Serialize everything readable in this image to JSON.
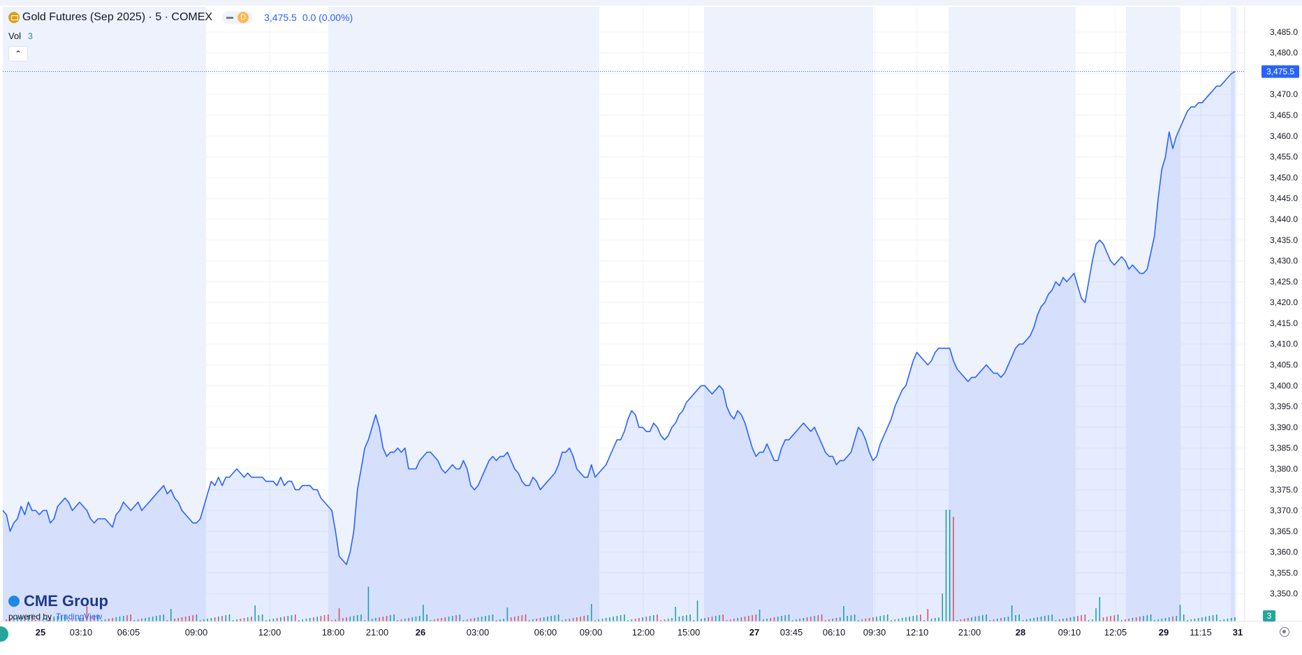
{
  "legend": {
    "title": "Gold Futures (Sep 2025) · 5 · COMEX",
    "badge": "D",
    "price": "3,475.5",
    "change": "0.0 (0.00%)"
  },
  "volume": {
    "label": "Vol",
    "value": "3"
  },
  "watermark": {
    "brand": "CME Group",
    "powered": "powered by",
    "tv": "TradingView"
  },
  "colors": {
    "line": "#2962ff",
    "fill": "#2962ff",
    "shade": "#e8eefc",
    "up_volume": "#26a69a",
    "down_volume": "#ef5350",
    "grid": "#f0f3fa"
  },
  "chart_data": {
    "type": "area",
    "title": "Gold Futures (Sep 2025) · 5 · COMEX",
    "ylim": [
      3345,
      3488
    ],
    "y_ticks": [
      "3,350.0",
      "3,355.0",
      "3,360.0",
      "3,365.0",
      "3,370.0",
      "3,375.0",
      "3,380.0",
      "3,385.0",
      "3,390.0",
      "3,395.0",
      "3,400.0",
      "3,405.0",
      "3,410.0",
      "3,415.0",
      "3,420.0",
      "3,425.0",
      "3,430.0",
      "3,435.0",
      "3,440.0",
      "3,445.0",
      "3,450.0",
      "3,455.0",
      "3,460.0",
      "3,465.0",
      "3,470.0",
      "3,475.0",
      "3,480.0",
      "3,485.0"
    ],
    "x_ticks": [
      "25",
      "03:10",
      "06:05",
      "09:00",
      "12:00",
      "18:00",
      "21:00",
      "26",
      "03:00",
      "06:00",
      "09:00",
      "12:00",
      "15:00",
      "27",
      "03:45",
      "06:10",
      "09:30",
      "12:10",
      "21:00",
      "28",
      "09:10",
      "12:05",
      "29",
      "11:15",
      "31"
    ],
    "last_price_label": "3,475.5",
    "last_volume_label": "3",
    "series": [
      {
        "values": [
          3370,
          3369,
          3365,
          3367,
          3368,
          3371,
          3369,
          3372,
          3370,
          3370,
          3369,
          3370,
          3370,
          3367,
          3368,
          3371,
          3372,
          3373,
          3372,
          3370,
          3371,
          3372,
          3371,
          3370,
          3368,
          3367,
          3368,
          3368,
          3368,
          3367,
          3366,
          3369,
          3370,
          3372,
          3371,
          3370,
          3371,
          3372,
          3370,
          3371,
          3372,
          3373,
          3374,
          3375,
          3376,
          3374,
          3375,
          3373,
          3372,
          3370,
          3369,
          3368,
          3367,
          3367,
          3368,
          3371,
          3374,
          3377,
          3376,
          3378,
          3376,
          3378,
          3378,
          3379,
          3380,
          3379,
          3378,
          3379,
          3378,
          3378,
          3378,
          3378,
          3377,
          3377,
          3377,
          3376,
          3378,
          3376,
          3377,
          3377,
          3375,
          3375,
          3376,
          3376,
          3376,
          3375,
          3375,
          3373,
          3372,
          3371,
          3370,
          3365,
          3359,
          3358,
          3357,
          3360,
          3365,
          3375,
          3380,
          3385,
          3387,
          3390,
          3393,
          3390,
          3385,
          3383,
          3384,
          3384,
          3385,
          3384,
          3385,
          3380,
          3380,
          3380,
          3382,
          3383,
          3384,
          3384,
          3383,
          3382,
          3380,
          3379,
          3380,
          3381,
          3380,
          3380,
          3382,
          3380,
          3376,
          3375,
          3376,
          3378,
          3380,
          3382,
          3383,
          3382,
          3383,
          3383,
          3384,
          3382,
          3380,
          3379,
          3377,
          3376,
          3376,
          3378,
          3377,
          3375,
          3376,
          3377,
          3378,
          3379,
          3381,
          3384,
          3384,
          3385,
          3383,
          3380,
          3379,
          3378,
          3378,
          3381,
          3378,
          3379,
          3380,
          3381,
          3383,
          3385,
          3387,
          3387,
          3389,
          3392,
          3394,
          3393,
          3390,
          3390,
          3389,
          3389,
          3391,
          3390,
          3388,
          3387,
          3388,
          3390,
          3391,
          3393,
          3394,
          3396,
          3397,
          3398,
          3399,
          3400,
          3400,
          3399,
          3398,
          3399,
          3400,
          3399,
          3395,
          3393,
          3392,
          3394,
          3393,
          3391,
          3388,
          3385,
          3383,
          3384,
          3384,
          3386,
          3384,
          3382,
          3382,
          3385,
          3387,
          3387,
          3388,
          3389,
          3390,
          3391,
          3390,
          3389,
          3390,
          3388,
          3386,
          3384,
          3383,
          3383,
          3381,
          3382,
          3382,
          3383,
          3384,
          3387,
          3390,
          3389,
          3387,
          3384,
          3382,
          3383,
          3386,
          3388,
          3390,
          3392,
          3395,
          3397,
          3399,
          3400,
          3403,
          3406,
          3408,
          3407,
          3406,
          3405,
          3406,
          3408,
          3409,
          3409,
          3409,
          3409,
          3406,
          3404,
          3403,
          3402,
          3401,
          3402,
          3402,
          3403,
          3404,
          3405,
          3404,
          3403,
          3403,
          3402,
          3403,
          3405,
          3407,
          3409,
          3410,
          3410,
          3411,
          3412,
          3414,
          3417,
          3419,
          3420,
          3422,
          3423,
          3425,
          3424,
          3426,
          3425,
          3426,
          3427,
          3424,
          3421,
          3420,
          3425,
          3430,
          3434,
          3435,
          3434,
          3432,
          3430,
          3429,
          3430,
          3431,
          3430,
          3428,
          3429,
          3428,
          3427,
          3427,
          3428,
          3432,
          3436,
          3445,
          3452,
          3455,
          3461,
          3457,
          3460,
          3462,
          3464,
          3466,
          3467,
          3467,
          3468,
          3468,
          3469,
          3470,
          3471,
          3472,
          3472,
          3473,
          3474,
          3475,
          3475.5
        ]
      }
    ]
  }
}
